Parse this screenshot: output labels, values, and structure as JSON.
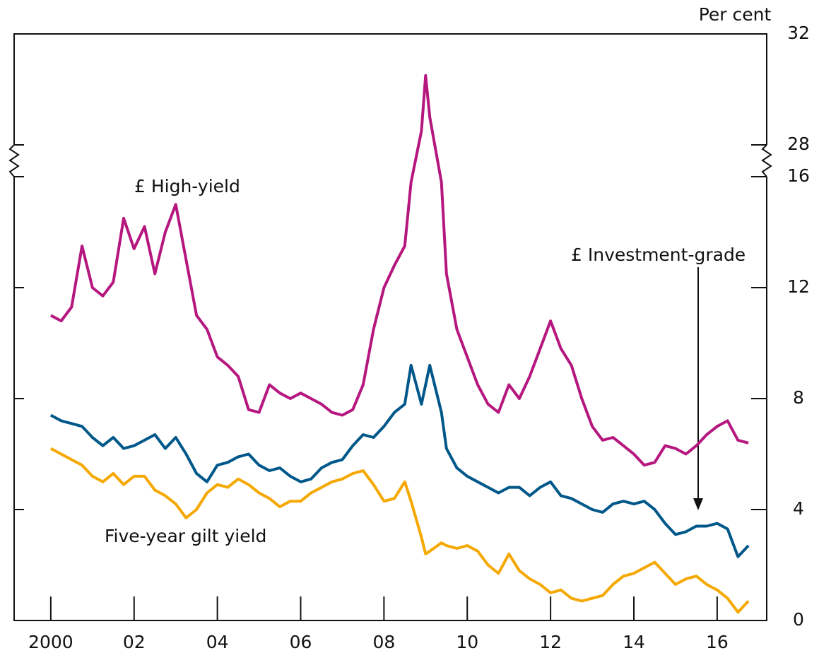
{
  "chart_data": {
    "type": "line",
    "axis_label": "Per cent",
    "x": [
      2000,
      2000.25,
      2000.5,
      2000.75,
      2001,
      2001.25,
      2001.5,
      2001.75,
      2002,
      2002.25,
      2002.5,
      2002.75,
      2003,
      2003.25,
      2003.5,
      2003.75,
      2004,
      2004.25,
      2004.5,
      2004.75,
      2005,
      2005.25,
      2005.5,
      2005.75,
      2006,
      2006.25,
      2006.5,
      2006.75,
      2007,
      2007.25,
      2007.5,
      2007.75,
      2008,
      2008.25,
      2008.5,
      2008.65,
      2008.9,
      2009,
      2009.1,
      2009.38,
      2009.5,
      2009.75,
      2010,
      2010.25,
      2010.5,
      2010.75,
      2011,
      2011.25,
      2011.5,
      2011.75,
      2012,
      2012.25,
      2012.5,
      2012.75,
      2013,
      2013.25,
      2013.5,
      2013.75,
      2014,
      2014.25,
      2014.5,
      2014.75,
      2015,
      2015.25,
      2015.5,
      2015.75,
      2016,
      2016.25,
      2016.5,
      2016.75
    ],
    "series": [
      {
        "name": "£ High-yield",
        "color": "#b5177f",
        "values": [
          11.0,
          10.8,
          11.3,
          13.5,
          12.0,
          11.7,
          12.2,
          14.5,
          13.4,
          14.2,
          12.5,
          14.0,
          15.0,
          13.0,
          11.0,
          10.5,
          9.5,
          9.2,
          8.8,
          7.6,
          7.5,
          8.5,
          8.2,
          8.0,
          8.2,
          8.0,
          7.8,
          7.5,
          7.4,
          7.6,
          8.5,
          10.5,
          12.0,
          12.8,
          13.5,
          15.8,
          28.5,
          30.5,
          29.0,
          15.8,
          12.5,
          10.5,
          9.5,
          8.5,
          7.8,
          7.5,
          8.5,
          8.0,
          8.8,
          9.8,
          10.8,
          9.8,
          9.2,
          8.0,
          7.0,
          6.5,
          6.6,
          6.3,
          6.0,
          5.6,
          5.7,
          6.3,
          6.2,
          6.0,
          6.3,
          6.7,
          7.0,
          7.2,
          6.5,
          6.4
        ]
      },
      {
        "name": "£ Investment-grade",
        "color": "#00588a",
        "values": [
          7.4,
          7.2,
          7.1,
          7.0,
          6.6,
          6.3,
          6.6,
          6.2,
          6.3,
          6.5,
          6.7,
          6.2,
          6.6,
          6.0,
          5.3,
          5.0,
          5.6,
          5.7,
          5.9,
          6.0,
          5.6,
          5.4,
          5.5,
          5.2,
          5.0,
          5.1,
          5.5,
          5.7,
          5.8,
          6.3,
          6.7,
          6.6,
          7.0,
          7.5,
          7.8,
          9.2,
          7.8,
          8.5,
          9.2,
          7.5,
          6.2,
          5.5,
          5.2,
          5.0,
          4.8,
          4.6,
          4.8,
          4.8,
          4.5,
          4.8,
          5.0,
          4.5,
          4.4,
          4.2,
          4.0,
          3.9,
          4.2,
          4.3,
          4.2,
          4.3,
          4.0,
          3.5,
          3.1,
          3.2,
          3.4,
          3.4,
          3.5,
          3.3,
          2.3,
          2.7
        ]
      },
      {
        "name": "Five-year gilt yield",
        "color": "#f5a800",
        "values": [
          6.2,
          6.0,
          5.8,
          5.6,
          5.2,
          5.0,
          5.3,
          4.9,
          5.2,
          5.2,
          4.7,
          4.5,
          4.2,
          3.7,
          4.0,
          4.6,
          4.9,
          4.8,
          5.1,
          4.9,
          4.6,
          4.4,
          4.1,
          4.3,
          4.3,
          4.6,
          4.8,
          5.0,
          5.1,
          5.3,
          5.4,
          4.9,
          4.3,
          4.4,
          5.0,
          4.3,
          3.0,
          2.4,
          2.5,
          2.8,
          2.7,
          2.6,
          2.7,
          2.5,
          2.0,
          1.7,
          2.4,
          1.8,
          1.5,
          1.3,
          1.0,
          1.1,
          0.8,
          0.7,
          0.8,
          0.9,
          1.3,
          1.6,
          1.7,
          1.9,
          2.1,
          1.7,
          1.3,
          1.5,
          1.6,
          1.3,
          1.1,
          0.8,
          0.3,
          0.7
        ]
      }
    ],
    "xlim": [
      1999.12,
      2017.19
    ],
    "xticks": [
      2000,
      {
        "value": 2002,
        "label": "02"
      },
      {
        "value": 2004,
        "label": "04"
      },
      {
        "value": 2006,
        "label": "06"
      },
      {
        "value": 2008,
        "label": "08"
      },
      {
        "value": 2010,
        "label": "10"
      },
      {
        "value": 2012,
        "label": "12"
      },
      {
        "value": 2014,
        "label": "14"
      },
      {
        "value": 2016,
        "label": "16"
      }
    ],
    "ylim": [
      0,
      32
    ],
    "ybreak": [
      16,
      28
    ],
    "yticks": [
      0,
      4,
      8,
      12,
      16,
      28,
      32
    ]
  }
}
